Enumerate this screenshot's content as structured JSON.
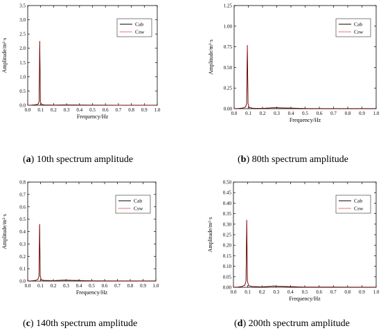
{
  "colors": {
    "cab": "#000000",
    "csw": "#e00000"
  },
  "chart_data": [
    {
      "type": "line",
      "caption": {
        "label": "a",
        "text": "10th spectrum amplitude"
      },
      "xlabel": "Frequency/Hz",
      "ylabel": "Amplitude/m²·s",
      "xlim": [
        0.0,
        1.0
      ],
      "ylim": [
        0.0,
        3.5
      ],
      "xticks": [
        "0.0",
        "0.1",
        "0.2",
        "0.3",
        "0.4",
        "0.5",
        "0.6",
        "0.7",
        "0.8",
        "0.9",
        "1.0"
      ],
      "yticks": [
        "0.0",
        "0.5",
        "1.0",
        "1.5",
        "2.0",
        "2.5",
        "3.0",
        "3.5"
      ],
      "legend": "top-right",
      "peak": {
        "x": 0.093,
        "y": 2.25
      },
      "series": [
        {
          "name": "Cab",
          "style": "solid",
          "x": [
            0.0,
            0.03,
            0.06,
            0.08,
            0.088,
            0.093,
            0.098,
            0.106,
            0.13,
            0.2,
            0.28,
            0.5,
            0.7,
            1.0
          ],
          "y": [
            0.0,
            0.005,
            0.015,
            0.04,
            0.12,
            2.25,
            0.13,
            0.03,
            0.01,
            0.005,
            0.01,
            0.003,
            0.002,
            0.001
          ]
        },
        {
          "name": "Csw",
          "style": "dotted",
          "x": [
            0.0,
            0.03,
            0.06,
            0.08,
            0.088,
            0.093,
            0.098,
            0.106,
            0.13,
            0.2,
            0.28,
            0.5,
            0.7,
            1.0
          ],
          "y": [
            0.0,
            0.005,
            0.015,
            0.04,
            0.12,
            2.25,
            0.13,
            0.03,
            0.01,
            0.005,
            0.01,
            0.003,
            0.002,
            0.001
          ]
        }
      ]
    },
    {
      "type": "line",
      "caption": {
        "label": "b",
        "text": "80th spectrum amplitude"
      },
      "xlabel": "Frequency/Hz",
      "ylabel": "Amplitude/m²·s",
      "xlim": [
        0.0,
        1.0
      ],
      "ylim": [
        0.0,
        1.25
      ],
      "xticks": [
        "0.0",
        "0.1",
        "0.2",
        "0.3",
        "0.4",
        "0.5",
        "0.6",
        "0.7",
        "0.8",
        "0.9",
        "1.0"
      ],
      "yticks": [
        "0.00",
        "0.25",
        "0.50",
        "0.75",
        "1.00",
        "1.25"
      ],
      "legend": "top-right",
      "peak": {
        "x": 0.093,
        "y": 0.77
      },
      "series": [
        {
          "name": "Cab",
          "style": "solid",
          "x": [
            0.0,
            0.03,
            0.06,
            0.08,
            0.088,
            0.093,
            0.098,
            0.106,
            0.13,
            0.2,
            0.28,
            0.5,
            0.7,
            1.0
          ],
          "y": [
            0.0,
            0.003,
            0.008,
            0.02,
            0.06,
            0.77,
            0.06,
            0.015,
            0.006,
            0.004,
            0.012,
            0.002,
            0.001,
            0.001
          ]
        },
        {
          "name": "Csw",
          "style": "dotted",
          "x": [
            0.0,
            0.03,
            0.06,
            0.08,
            0.088,
            0.093,
            0.098,
            0.106,
            0.13,
            0.2,
            0.28,
            0.5,
            0.7,
            1.0
          ],
          "y": [
            0.0,
            0.003,
            0.008,
            0.02,
            0.06,
            0.77,
            0.06,
            0.015,
            0.006,
            0.004,
            0.012,
            0.002,
            0.001,
            0.001
          ]
        }
      ]
    },
    {
      "type": "line",
      "caption": {
        "label": "c",
        "text": "140th spectrum amplitude"
      },
      "xlabel": "Frequency/Hz",
      "ylabel": "Amplitude/m²·s",
      "xlim": [
        0.0,
        1.0
      ],
      "ylim": [
        0.0,
        0.8
      ],
      "xticks": [
        "0.0",
        "0.1",
        "0.2",
        "0.3",
        "0.4",
        "0.5",
        "0.6",
        "0.7",
        "0.8",
        "0.9",
        "1.0"
      ],
      "yticks": [
        "0.0",
        "0.1",
        "0.2",
        "0.3",
        "0.4",
        "0.5",
        "0.6",
        "0.7",
        "0.8"
      ],
      "legend": "top-right",
      "peak": {
        "x": 0.093,
        "y": 0.46
      },
      "series": [
        {
          "name": "Cab",
          "style": "solid",
          "x": [
            0.0,
            0.03,
            0.06,
            0.08,
            0.088,
            0.093,
            0.098,
            0.106,
            0.13,
            0.2,
            0.28,
            0.5,
            0.7,
            1.0
          ],
          "y": [
            0.0,
            0.002,
            0.005,
            0.015,
            0.04,
            0.46,
            0.04,
            0.01,
            0.005,
            0.003,
            0.008,
            0.002,
            0.001,
            0.001
          ]
        },
        {
          "name": "Csw",
          "style": "dotted",
          "x": [
            0.0,
            0.03,
            0.06,
            0.08,
            0.088,
            0.093,
            0.098,
            0.106,
            0.13,
            0.2,
            0.28,
            0.5,
            0.7,
            1.0
          ],
          "y": [
            0.0,
            0.002,
            0.005,
            0.015,
            0.04,
            0.46,
            0.04,
            0.01,
            0.005,
            0.003,
            0.008,
            0.002,
            0.001,
            0.001
          ]
        }
      ]
    },
    {
      "type": "line",
      "caption": {
        "label": "d",
        "text": "200th spectrum amplitude"
      },
      "xlabel": "Frequency/Hz",
      "ylabel": "Amplitude/m²·s",
      "xlim": [
        0.0,
        1.0
      ],
      "ylim": [
        0.0,
        0.5
      ],
      "xticks": [
        "0.0",
        "0.1",
        "0.2",
        "0.3",
        "0.4",
        "0.5",
        "0.6",
        "0.7",
        "0.8",
        "0.9",
        "1.0"
      ],
      "yticks": [
        "0.00",
        "0.05",
        "0.10",
        "0.15",
        "0.20",
        "0.25",
        "0.30",
        "0.35",
        "0.40",
        "0.45",
        "0.50"
      ],
      "legend": "top-right",
      "peak": {
        "x": 0.093,
        "y": 0.32
      },
      "series": [
        {
          "name": "Cab",
          "style": "solid",
          "x": [
            0.0,
            0.03,
            0.06,
            0.08,
            0.088,
            0.093,
            0.098,
            0.106,
            0.13,
            0.2,
            0.28,
            0.5,
            0.7,
            1.0
          ],
          "y": [
            0.0,
            0.001,
            0.004,
            0.01,
            0.03,
            0.32,
            0.03,
            0.008,
            0.004,
            0.002,
            0.006,
            0.001,
            0.001,
            0.0005
          ]
        },
        {
          "name": "Csw",
          "style": "dotted",
          "x": [
            0.0,
            0.03,
            0.06,
            0.08,
            0.088,
            0.093,
            0.098,
            0.106,
            0.13,
            0.2,
            0.28,
            0.5,
            0.7,
            1.0
          ],
          "y": [
            0.0,
            0.001,
            0.004,
            0.01,
            0.03,
            0.32,
            0.03,
            0.008,
            0.004,
            0.002,
            0.006,
            0.001,
            0.001,
            0.0005
          ]
        }
      ]
    }
  ]
}
